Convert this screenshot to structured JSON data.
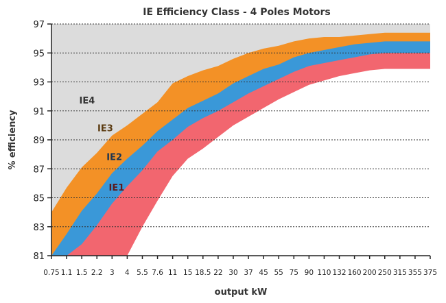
{
  "chart_data": {
    "type": "area",
    "title": "IE Efficiency Class - 4 Poles Motors",
    "xlabel": "output kW",
    "ylabel": "% efficiency",
    "ylim": [
      81,
      97
    ],
    "yticks": [
      "97",
      "95",
      "93",
      "91",
      "89",
      "87",
      "85",
      "83",
      "81"
    ],
    "categories": [
      "0.75",
      "1.1",
      "1.5",
      "2.2",
      "3",
      "4",
      "5.5",
      "7.6",
      "11",
      "15",
      "18.5",
      "22",
      "30",
      "37",
      "45",
      "55",
      "75",
      "90",
      "110",
      "132",
      "160",
      "200",
      "250",
      "315",
      "355",
      "375"
    ],
    "grid": true,
    "series": [
      {
        "name": "IE4",
        "color": "#f39126",
        "values": [
          84.0,
          85.7,
          87.1,
          88.1,
          89.3,
          90.0,
          90.8,
          91.6,
          92.9,
          93.4,
          93.8,
          94.1,
          94.6,
          95.0,
          95.3,
          95.5,
          95.8,
          96.0,
          96.1,
          96.1,
          96.2,
          96.3,
          96.4,
          96.4,
          96.4,
          96.4
        ]
      },
      {
        "name": "IE3",
        "color": "#3a98d8",
        "values": [
          81.0,
          82.5,
          84.1,
          85.3,
          86.7,
          87.7,
          88.6,
          89.6,
          90.4,
          91.2,
          91.7,
          92.2,
          92.9,
          93.4,
          93.9,
          94.2,
          94.7,
          95.0,
          95.2,
          95.4,
          95.6,
          95.7,
          95.8,
          95.8,
          95.8,
          95.8
        ]
      },
      {
        "name": "IE2",
        "color": "#f2666f",
        "values": [
          81.0,
          81.0,
          81.8,
          83.1,
          84.6,
          85.8,
          86.9,
          88.2,
          89.0,
          89.9,
          90.5,
          91.0,
          91.6,
          92.2,
          92.7,
          93.2,
          93.7,
          94.1,
          94.3,
          94.5,
          94.7,
          94.9,
          95.0,
          95.0,
          95.0,
          95.0
        ]
      },
      {
        "name": "IE1",
        "color": "#ffffff",
        "values": [
          81.0,
          81.0,
          81.0,
          81.0,
          81.0,
          81.0,
          83.0,
          84.8,
          86.5,
          87.7,
          88.4,
          89.2,
          90.0,
          90.6,
          91.2,
          91.8,
          92.3,
          92.8,
          93.1,
          93.4,
          93.6,
          93.8,
          93.9,
          93.9,
          93.9,
          93.9
        ]
      }
    ],
    "band_labels": [
      "IE4",
      "IE3",
      "IE2",
      "IE1"
    ],
    "background_color": "#dcdcdc"
  }
}
